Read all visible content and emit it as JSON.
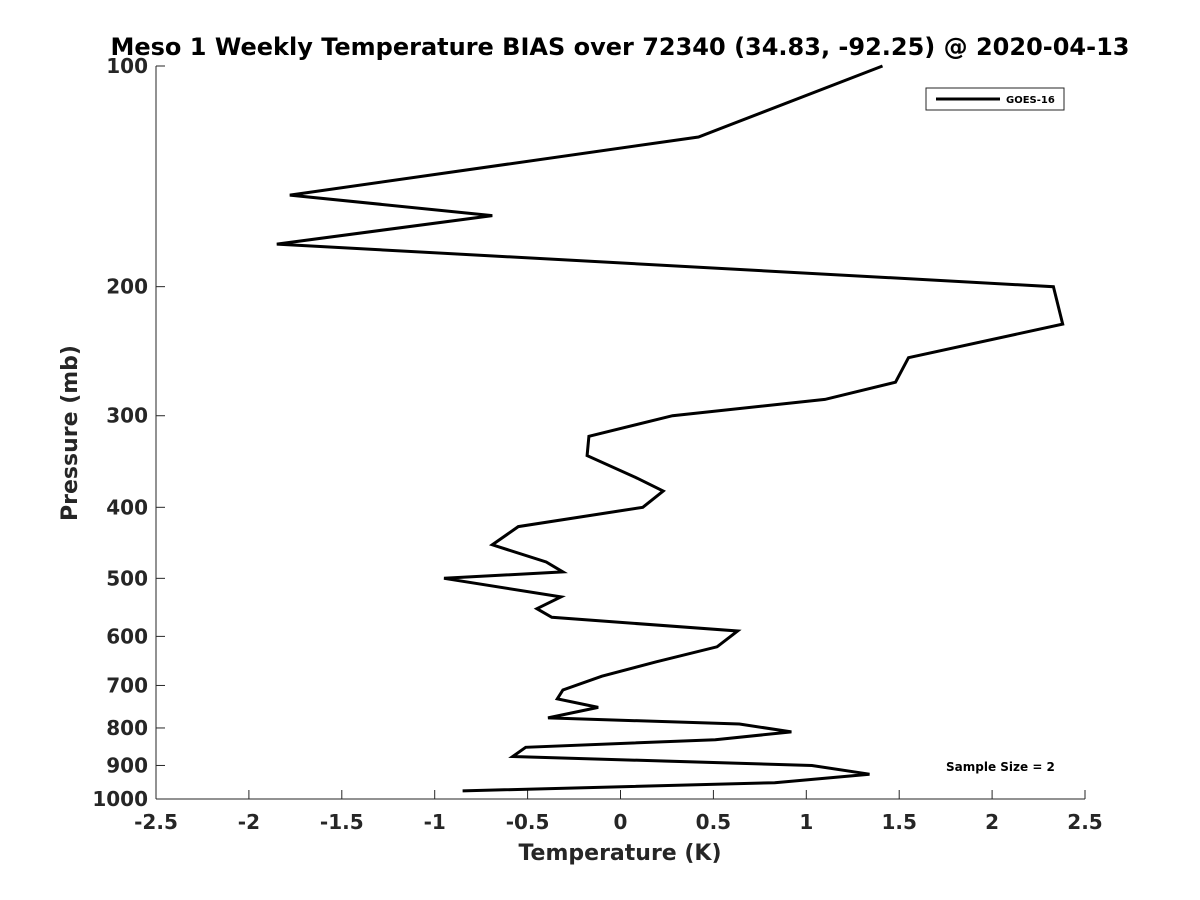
{
  "chart_data": {
    "type": "line",
    "title": "Meso 1 Weekly Temperature BIAS over 72340 (34.83, -92.25) @ 2020-04-13",
    "xlabel": "Temperature (K)",
    "ylabel": "Pressure (mb)",
    "xlim": [
      -2.5,
      2.5
    ],
    "ylim": [
      100,
      1000
    ],
    "y_scale": "log",
    "y_reversed": true,
    "x_ticks": [
      "-2.5",
      "-2",
      "-1.5",
      "-1",
      "-0.5",
      "0",
      "0.5",
      "1",
      "1.5",
      "2",
      "2.5"
    ],
    "y_ticks": [
      "100",
      "200",
      "300",
      "400",
      "500",
      "600",
      "700",
      "800",
      "900",
      "1000"
    ],
    "grid": false,
    "legend_position": "top-right",
    "annotation": "Sample Size = 2",
    "series": [
      {
        "name": "GOES-16",
        "color": "#000000",
        "x": [
          1.41,
          0.42,
          -1.78,
          -0.69,
          -1.85,
          2.33,
          2.38,
          1.55,
          1.48,
          1.1,
          0.28,
          -0.17,
          -0.18,
          0.09,
          0.23,
          0.12,
          -0.55,
          -0.69,
          -0.4,
          -0.31,
          -0.95,
          -0.32,
          -0.45,
          -0.37,
          0.63,
          0.52,
          0.19,
          -0.1,
          -0.31,
          -0.34,
          -0.12,
          -0.39,
          0.64,
          0.92,
          0.51,
          -0.51,
          -0.58,
          1.03,
          1.34,
          0.83,
          -0.85
        ],
        "y": [
          100,
          125,
          150,
          160,
          175,
          200,
          225,
          250,
          270,
          285,
          300,
          320,
          340,
          365,
          380,
          400,
          425,
          450,
          475,
          490,
          500,
          530,
          550,
          565,
          590,
          620,
          650,
          680,
          710,
          730,
          750,
          775,
          790,
          810,
          830,
          850,
          875,
          900,
          925,
          950,
          975
        ]
      }
    ]
  }
}
